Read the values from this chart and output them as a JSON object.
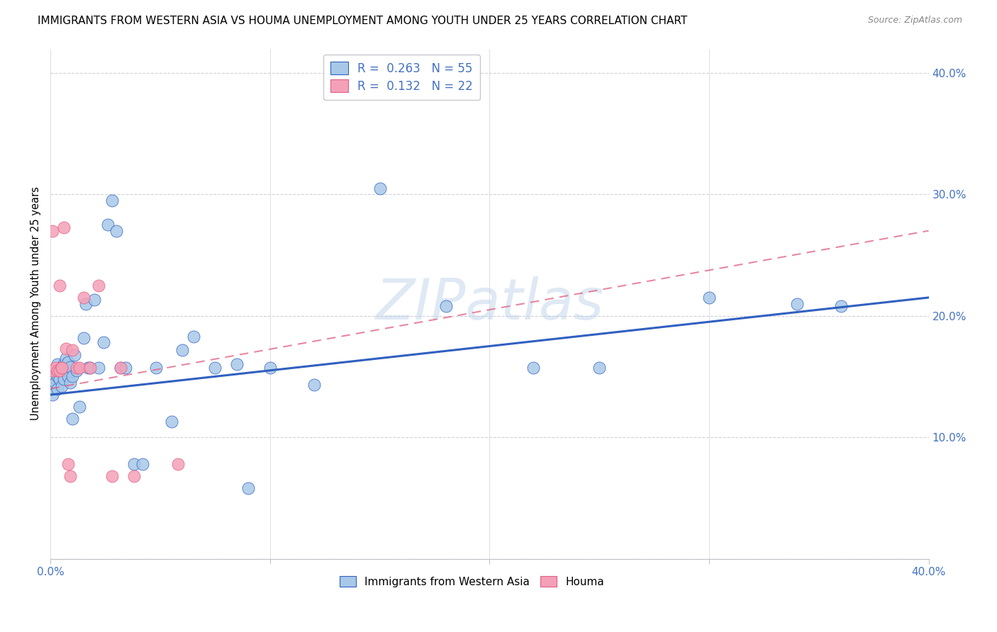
{
  "title": "IMMIGRANTS FROM WESTERN ASIA VS HOUMA UNEMPLOYMENT AMONG YOUTH UNDER 25 YEARS CORRELATION CHART",
  "source": "Source: ZipAtlas.com",
  "ylabel": "Unemployment Among Youth under 25 years",
  "legend_label_1": "Immigrants from Western Asia",
  "legend_label_2": "Houma",
  "R1": 0.263,
  "N1": 55,
  "R2": 0.132,
  "N2": 22,
  "color_blue": "#a8c8e8",
  "color_pink": "#f4a0b8",
  "color_line_blue": "#3060c0",
  "color_line_pink": "#e06080",
  "color_text_blue": "#4472c4",
  "background": "#ffffff",
  "grid_color": "#d0d0d8",
  "xlim": [
    0.0,
    0.4
  ],
  "ylim": [
    0.0,
    0.42
  ],
  "blue_scatter_x": [
    0.001,
    0.001,
    0.001,
    0.002,
    0.002,
    0.003,
    0.003,
    0.003,
    0.004,
    0.004,
    0.005,
    0.005,
    0.006,
    0.006,
    0.007,
    0.007,
    0.008,
    0.008,
    0.009,
    0.009,
    0.01,
    0.01,
    0.011,
    0.012,
    0.013,
    0.015,
    0.016,
    0.017,
    0.018,
    0.02,
    0.022,
    0.024,
    0.026,
    0.028,
    0.03,
    0.032,
    0.034,
    0.038,
    0.042,
    0.048,
    0.055,
    0.06,
    0.065,
    0.075,
    0.085,
    0.09,
    0.1,
    0.12,
    0.15,
    0.18,
    0.22,
    0.25,
    0.3,
    0.34,
    0.36
  ],
  "blue_scatter_y": [
    0.15,
    0.14,
    0.135,
    0.155,
    0.145,
    0.16,
    0.15,
    0.14,
    0.155,
    0.148,
    0.158,
    0.142,
    0.16,
    0.148,
    0.165,
    0.155,
    0.162,
    0.15,
    0.158,
    0.145,
    0.115,
    0.15,
    0.168,
    0.155,
    0.125,
    0.182,
    0.21,
    0.157,
    0.157,
    0.213,
    0.157,
    0.178,
    0.275,
    0.295,
    0.27,
    0.157,
    0.157,
    0.078,
    0.078,
    0.157,
    0.113,
    0.172,
    0.183,
    0.157,
    0.16,
    0.058,
    0.157,
    0.143,
    0.305,
    0.208,
    0.157,
    0.157,
    0.215,
    0.21,
    0.208
  ],
  "pink_scatter_x": [
    0.001,
    0.001,
    0.002,
    0.003,
    0.004,
    0.004,
    0.005,
    0.005,
    0.006,
    0.007,
    0.008,
    0.009,
    0.01,
    0.012,
    0.013,
    0.015,
    0.018,
    0.022,
    0.028,
    0.032,
    0.038,
    0.058
  ],
  "pink_scatter_y": [
    0.155,
    0.27,
    0.157,
    0.155,
    0.225,
    0.155,
    0.157,
    0.157,
    0.273,
    0.173,
    0.078,
    0.068,
    0.172,
    0.157,
    0.157,
    0.215,
    0.157,
    0.225,
    0.068,
    0.157,
    0.068,
    0.078
  ],
  "yticks": [
    0.0,
    0.1,
    0.2,
    0.3,
    0.4
  ],
  "ytick_labels_right": [
    "",
    "10.0%",
    "20.0%",
    "30.0%",
    "40.0%"
  ],
  "xticks": [
    0.0,
    0.1,
    0.2,
    0.3,
    0.4
  ],
  "xtick_labels": [
    "0.0%",
    "",
    "",
    "",
    "40.0%"
  ]
}
